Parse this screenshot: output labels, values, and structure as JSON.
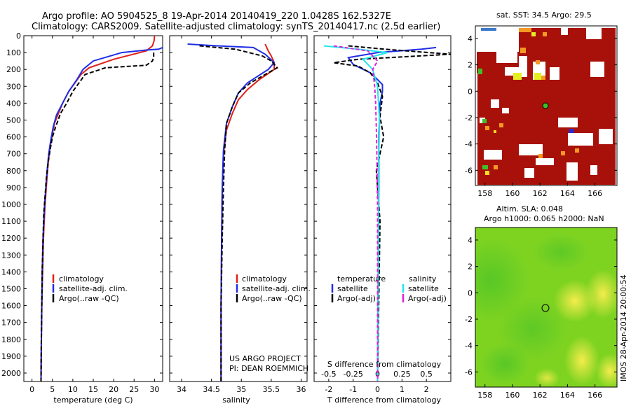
{
  "header": {
    "line1": "Argo profile: AO 5904525_8 19-Apr-2014 20140419_220 1.0428S 162.5327E",
    "line2": "Climatology: CARS2009. Satellite-adjusted climatology: synTS_20140417.nc (2.5d earlier)"
  },
  "depth_ticks": [
    "0",
    "100",
    "200",
    "300",
    "400",
    "500",
    "600",
    "700",
    "800",
    "900",
    "1000",
    "1100",
    "1200",
    "1300",
    "1400",
    "1500",
    "1600",
    "1700",
    "1800",
    "1900",
    "2000"
  ],
  "colors": {
    "climatology": "#e0201a",
    "satellite": "#1f2ee6",
    "argo": "#000000",
    "sat_s": "#22e6ee",
    "argo_s": "#dd22dd",
    "map_red": "#a8100a",
    "map_green": "#7ed321"
  },
  "panels": {
    "temperature": {
      "xlabel": "temperature (deg C)",
      "xticks": [
        "0",
        "5",
        "10",
        "15",
        "20",
        "25",
        "30"
      ],
      "legend": [
        "climatology",
        "satellite-adj. clim.",
        "Argo(..raw -QC)"
      ]
    },
    "salinity": {
      "xlabel": "salinity",
      "xticks": [
        "34",
        "34.5",
        "35",
        "35.5",
        "36"
      ],
      "legend": [
        "climatology",
        "satellite-adj. clim.",
        "Argo(..raw -QC)"
      ],
      "note1": "US ARGO PROJECT",
      "note2": "PI: DEAN ROEMMICH"
    },
    "difference": {
      "xlabel": "T difference from climatology",
      "top_label": "S difference from climatology",
      "xticks_top": [
        "-0.5",
        "-0.25",
        "0",
        "0.25",
        "0.5"
      ],
      "xticks_bottom": [
        "-2",
        "-1",
        "0",
        "1",
        "2"
      ],
      "legend_t_title": "temperature",
      "legend_s_title": "salinity",
      "legend_t": [
        "satellite",
        "Argo(-adj)"
      ],
      "legend_s": [
        "satellite",
        "Argo(-adj)"
      ]
    }
  },
  "maps": {
    "sst": {
      "title": "sat. SST: 34.5 Argo: 29.5",
      "xticks": [
        "158",
        "160",
        "162",
        "164",
        "166"
      ],
      "yticks": [
        "4",
        "2",
        "0",
        "-2",
        "-4",
        "-6"
      ]
    },
    "sla": {
      "title1": "Altim. SLA: 0.048",
      "title2": "Argo h1000: 0.065 h2000: NaN",
      "xticks": [
        "158",
        "160",
        "162",
        "164",
        "166"
      ],
      "yticks": [
        "4",
        "2",
        "0",
        "-2",
        "-4",
        "-6"
      ]
    },
    "footer": "IMOS 28-Apr-2014 20:00:54"
  },
  "chart_data": [
    {
      "type": "line",
      "title": "",
      "xlabel": "temperature (deg C)",
      "ylabel": "",
      "xlim": [
        -2,
        32
      ],
      "ylim": [
        2050,
        0
      ],
      "series": [
        {
          "name": "climatology",
          "x": [
            30,
            29.9,
            29.5,
            28,
            20,
            14,
            12,
            10.5,
            9,
            7.5,
            6.5,
            5.5,
            5,
            4.6,
            4.2,
            3.8,
            3.5,
            3.2,
            3,
            2.8,
            2.6,
            2.4,
            2.3,
            2.2
          ],
          "y": [
            0,
            30,
            60,
            90,
            140,
            190,
            230,
            280,
            330,
            400,
            460,
            520,
            580,
            640,
            700,
            800,
            900,
            1000,
            1100,
            1200,
            1400,
            1600,
            1800,
            2050
          ]
        },
        {
          "name": "satellite-adj. clim.",
          "x": [
            32,
            31,
            28,
            22,
            15,
            12.5,
            11,
            9,
            7.5,
            6,
            5.2,
            4.6,
            4.1,
            3.7,
            3.4,
            3.1,
            2.9,
            2.7,
            2.5,
            2.4,
            2.3,
            2.2
          ],
          "y": [
            70,
            80,
            85,
            100,
            150,
            200,
            260,
            330,
            400,
            470,
            540,
            620,
            700,
            800,
            900,
            1000,
            1100,
            1200,
            1400,
            1600,
            1800,
            2050
          ]
        },
        {
          "name": "Argo(..raw -QC)",
          "x": [
            29.8,
            29.8,
            29.5,
            28,
            18,
            13,
            11.5,
            10,
            8.5,
            7,
            5.8,
            5,
            4.4,
            3.9,
            3.5,
            3.2,
            2.9,
            2.7,
            2.5,
            2.4,
            2.3,
            2.2
          ],
          "y": [
            100,
            130,
            150,
            175,
            190,
            230,
            280,
            330,
            400,
            460,
            540,
            600,
            680,
            760,
            850,
            950,
            1050,
            1200,
            1400,
            1600,
            1800,
            2050
          ]
        }
      ]
    },
    {
      "type": "line",
      "title": "",
      "xlabel": "salinity",
      "ylabel": "",
      "xlim": [
        33.8,
        36.1
      ],
      "ylim": [
        2050,
        0
      ],
      "series": [
        {
          "name": "climatology",
          "x": [
            35.4,
            35.45,
            35.5,
            35.55,
            35.55,
            35.3,
            35.1,
            34.95,
            34.85,
            34.75,
            34.7,
            34.68,
            34.67,
            34.66,
            34.66
          ],
          "y": [
            50,
            90,
            120,
            160,
            200,
            260,
            320,
            380,
            460,
            560,
            700,
            900,
            1200,
            1600,
            2050
          ]
        },
        {
          "name": "satellite-adj. clim.",
          "x": [
            34.1,
            34.6,
            35.2,
            35.4,
            35.55,
            35.45,
            35.1,
            34.95,
            34.85,
            34.75,
            34.7,
            34.68,
            34.67,
            34.66,
            34.66
          ],
          "y": [
            50,
            60,
            70,
            110,
            160,
            200,
            280,
            340,
            420,
            520,
            680,
            900,
            1200,
            1600,
            2050
          ]
        },
        {
          "name": "Argo(..raw -QC)",
          "x": [
            34.3,
            34.9,
            35.35,
            35.5,
            35.6,
            35.4,
            35.15,
            34.95,
            34.85,
            34.75,
            34.72,
            34.7,
            34.68,
            34.66,
            34.66
          ],
          "y": [
            60,
            80,
            120,
            150,
            190,
            230,
            280,
            340,
            420,
            520,
            680,
            900,
            1200,
            1600,
            2050
          ]
        }
      ]
    },
    {
      "type": "line",
      "title": "",
      "xlabel": "T difference from climatology",
      "ylabel": "",
      "xlim": [
        -2.6,
        3
      ],
      "ylim": [
        2050,
        0
      ],
      "series": [
        {
          "name": "satellite",
          "x": [
            2.4,
            1.8,
            0,
            -1.2,
            -1,
            -0.3,
            0,
            0.2,
            0.2,
            0.1,
            0.05,
            0.05,
            0.03,
            0
          ],
          "y": [
            70,
            80,
            100,
            130,
            170,
            220,
            260,
            290,
            330,
            400,
            600,
            900,
            1300,
            2050
          ]
        },
        {
          "name": "Argo(-adj)",
          "x": [
            -1.2,
            0.3,
            3,
            -0.8,
            -1.8,
            -0.8,
            -0.3,
            0,
            0.2,
            0.1,
            0.25,
            -0.05,
            0.1,
            0
          ],
          "y": [
            60,
            80,
            110,
            140,
            160,
            180,
            220,
            280,
            360,
            480,
            600,
            800,
            1100,
            2050
          ]
        }
      ]
    },
    {
      "type": "line",
      "title": "",
      "xlabel": "S difference from climatology",
      "ylabel": "",
      "xlim": [
        -0.65,
        0.75
      ],
      "ylim": [
        2050,
        0
      ],
      "series": [
        {
          "name": "satellite",
          "x": [
            -0.55,
            -0.2,
            0.1,
            -0.15,
            -0.05,
            0,
            0.02,
            0.01,
            0.01,
            0.005,
            0
          ],
          "y": [
            60,
            80,
            100,
            140,
            200,
            300,
            500,
            800,
            1200,
            1600,
            2050
          ]
        },
        {
          "name": "Argo(-adj)",
          "x": [
            -0.45,
            -0.1,
            0,
            -0.05,
            -0.03,
            -0.02,
            -0.01,
            0,
            0,
            0
          ],
          "y": [
            60,
            90,
            150,
            200,
            300,
            400,
            600,
            1000,
            1500,
            2050
          ]
        }
      ]
    }
  ]
}
